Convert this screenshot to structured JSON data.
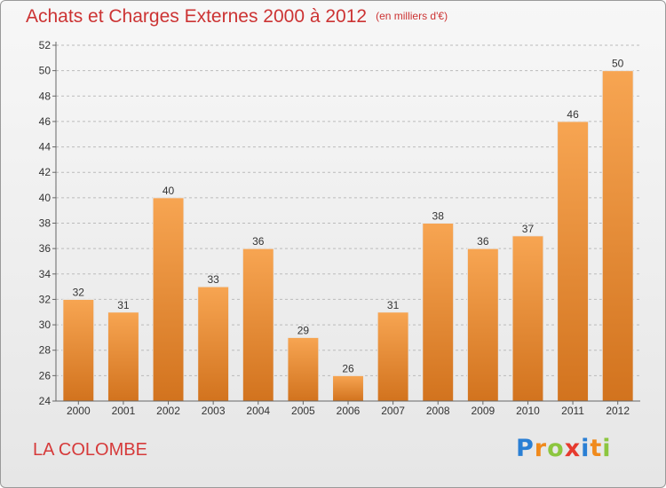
{
  "title": {
    "main": "Achats et Charges Externes 2000 à 2012",
    "unit": "(en milliers d'€)"
  },
  "commune": "LA COLOMBE",
  "logo": {
    "letters": [
      "P",
      "r",
      "o",
      "x",
      "i",
      "t",
      "i"
    ],
    "colors": [
      "#2a7fd4",
      "#f08a1c",
      "#8cc63f",
      "#e63a2e",
      "#2a7fd4",
      "#f08a1c",
      "#8cc63f"
    ]
  },
  "chart_data": {
    "type": "bar",
    "categories": [
      "2000",
      "2001",
      "2002",
      "2003",
      "2004",
      "2005",
      "2006",
      "2007",
      "2008",
      "2009",
      "2010",
      "2011",
      "2012"
    ],
    "values": [
      32,
      31,
      40,
      33,
      36,
      29,
      26,
      31,
      38,
      36,
      37,
      46,
      50
    ],
    "title": "Achats et Charges Externes 2000 à 2012",
    "ylim": [
      24,
      52
    ],
    "yticks": [
      24,
      26,
      28,
      30,
      32,
      34,
      36,
      38,
      40,
      42,
      44,
      46,
      48,
      50,
      52
    ],
    "grid": true,
    "colors": {
      "bar_light": "#f7a552",
      "bar_dark": "#d2731e",
      "grid": "#bbbbbb",
      "axis": "#666666"
    }
  }
}
